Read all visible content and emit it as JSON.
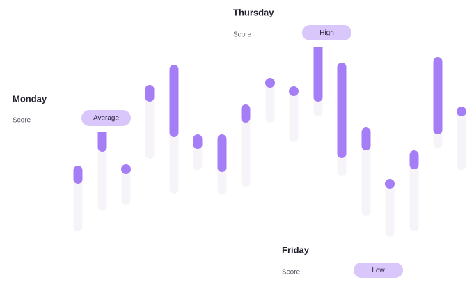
{
  "labels": [
    {
      "day": "Monday",
      "caption": "Score",
      "badge": "Average"
    },
    {
      "day": "Thursday",
      "caption": "Score",
      "badge": "High"
    },
    {
      "day": "Friday",
      "caption": "Score",
      "badge": "Low"
    }
  ]
}
